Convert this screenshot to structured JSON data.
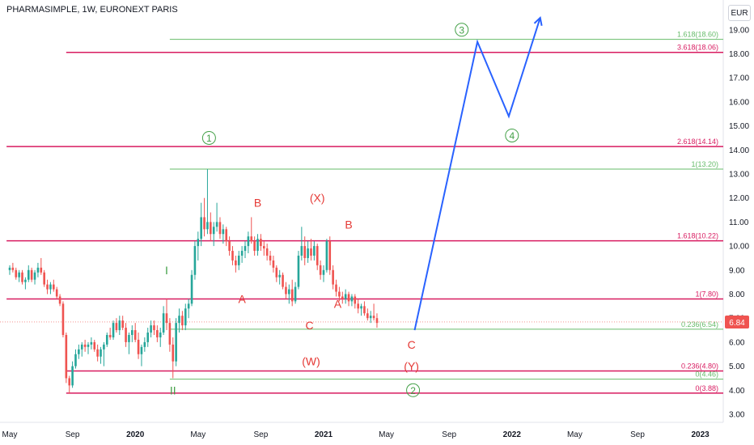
{
  "header": {
    "title": "PHARMASIMPLE, 1W, EURONEXT PARIS",
    "currency": "EUR"
  },
  "chart_data": {
    "type": "candlestick",
    "ylim": [
      2.5,
      19.7
    ],
    "y_ticks": [
      "3.00",
      "4.00",
      "5.00",
      "6.00",
      "7.00",
      "8.00",
      "9.00",
      "10.00",
      "11.00",
      "12.00",
      "13.00",
      "14.00",
      "15.00",
      "16.00",
      "17.00",
      "18.00",
      "19.00"
    ],
    "x_ticks": [
      {
        "label": "May",
        "t": 0.0
      },
      {
        "label": "Sep",
        "t": 4.0
      },
      {
        "label": "2020",
        "t": 8.0
      },
      {
        "label": "May",
        "t": 12.0
      },
      {
        "label": "Sep",
        "t": 16.0
      },
      {
        "label": "2021",
        "t": 20.0
      },
      {
        "label": "May",
        "t": 24.0
      },
      {
        "label": "Sep",
        "t": 28.0
      },
      {
        "label": "2022",
        "t": 32.0
      },
      {
        "label": "May",
        "t": 36.0
      },
      {
        "label": "Sep",
        "t": 40.0
      },
      {
        "label": "2023",
        "t": 44.0
      }
    ],
    "x_range": [
      -0.2,
      45.2
    ],
    "current_price": "6.84",
    "colors": {
      "up": "#26a69a",
      "down": "#ef5350",
      "fib_pink": "#d81b60",
      "fib_green": "#66bb6a",
      "projection": "#2962ff",
      "wave_red": "#e53935",
      "wave_green": "#43a047"
    },
    "fib_levels": [
      {
        "label": "1.618(18.60)",
        "value": 18.6,
        "color": "green",
        "from": 10.2
      },
      {
        "label": "3.618(18.06)",
        "value": 18.06,
        "color": "pink",
        "from": 3.6
      },
      {
        "label": "2.618(14.14)",
        "value": 14.14,
        "color": "pink",
        "from": -0.2
      },
      {
        "label": "1(13.20)",
        "value": 13.2,
        "color": "green",
        "from": 10.2
      },
      {
        "label": "1.618(10.22)",
        "value": 10.22,
        "color": "pink",
        "from": -0.2
      },
      {
        "label": "1(7.80)",
        "value": 7.8,
        "color": "pink",
        "from": -0.2
      },
      {
        "label": "0.236(6.54)",
        "value": 6.54,
        "color": "green",
        "from": 10.2
      },
      {
        "label": "0.236(4.80)",
        "value": 4.8,
        "color": "pink",
        "from": 3.6
      },
      {
        "label": "0(4.46)",
        "value": 4.46,
        "color": "green",
        "from": 10.2
      },
      {
        "label": "0(3.88)",
        "value": 3.88,
        "color": "pink",
        "from": 3.6
      }
    ],
    "projection_path": [
      {
        "t": 25.8,
        "v": 6.5
      },
      {
        "t": 29.8,
        "v": 18.5
      },
      {
        "t": 31.8,
        "v": 15.4
      },
      {
        "t": 33.8,
        "v": 19.5
      }
    ],
    "wave_labels": [
      {
        "text": "I",
        "t": 10.0,
        "v": 9.0,
        "color": "green",
        "circled": false
      },
      {
        "text": "II",
        "t": 10.4,
        "v": 4.0,
        "color": "green",
        "circled": false
      },
      {
        "text": "1",
        "t": 12.7,
        "v": 14.5,
        "color": "green",
        "circled": true
      },
      {
        "text": "2",
        "t": 25.7,
        "v": 4.0,
        "color": "green",
        "circled": true
      },
      {
        "text": "3",
        "t": 28.8,
        "v": 19.0,
        "color": "green",
        "circled": true
      },
      {
        "text": "4",
        "t": 32.0,
        "v": 14.6,
        "color": "green",
        "circled": true
      },
      {
        "text": "B",
        "t": 15.8,
        "v": 11.8,
        "color": "red",
        "circled": false
      },
      {
        "text": "A",
        "t": 14.8,
        "v": 7.8,
        "color": "red",
        "circled": false
      },
      {
        "text": "C",
        "t": 19.1,
        "v": 6.7,
        "color": "red",
        "circled": false
      },
      {
        "text": "(X)",
        "t": 19.6,
        "v": 12.0,
        "color": "red",
        "circled": false
      },
      {
        "text": "(W)",
        "t": 19.2,
        "v": 5.2,
        "color": "red",
        "circled": false
      },
      {
        "text": "B",
        "t": 21.6,
        "v": 10.9,
        "color": "red",
        "circled": false
      },
      {
        "text": "A",
        "t": 20.9,
        "v": 7.6,
        "color": "red",
        "circled": false
      },
      {
        "text": "C",
        "t": 25.6,
        "v": 5.9,
        "color": "red",
        "circled": false
      },
      {
        "text": "(Y)",
        "t": 25.6,
        "v": 5.0,
        "color": "red",
        "circled": false
      }
    ],
    "candles": [
      [
        0.0,
        9.0,
        9.2,
        8.8,
        9.1
      ],
      [
        0.2,
        9.1,
        9.3,
        8.9,
        9.0
      ],
      [
        0.4,
        9.0,
        9.1,
        8.6,
        8.7
      ],
      [
        0.6,
        8.7,
        9.0,
        8.5,
        8.9
      ],
      [
        0.8,
        8.9,
        9.0,
        8.4,
        8.5
      ],
      [
        1.0,
        8.5,
        8.7,
        8.2,
        8.6
      ],
      [
        1.2,
        8.6,
        9.2,
        8.5,
        9.0
      ],
      [
        1.4,
        9.0,
        9.1,
        8.5,
        8.6
      ],
      [
        1.6,
        8.6,
        9.0,
        8.4,
        8.9
      ],
      [
        1.8,
        8.9,
        9.3,
        8.7,
        9.1
      ],
      [
        2.0,
        9.1,
        9.5,
        8.8,
        8.9
      ],
      [
        2.2,
        8.9,
        9.0,
        8.3,
        8.4
      ],
      [
        2.4,
        8.4,
        8.6,
        8.0,
        8.2
      ],
      [
        2.6,
        8.2,
        8.5,
        8.0,
        8.4
      ],
      [
        2.8,
        8.4,
        8.6,
        8.1,
        8.2
      ],
      [
        3.0,
        8.2,
        8.3,
        7.8,
        7.9
      ],
      [
        3.2,
        7.9,
        8.0,
        7.5,
        7.6
      ],
      [
        3.4,
        7.6,
        7.7,
        6.2,
        6.3
      ],
      [
        3.6,
        6.3,
        6.4,
        4.3,
        4.5
      ],
      [
        3.8,
        4.5,
        4.6,
        3.85,
        4.2
      ],
      [
        4.0,
        4.2,
        5.2,
        4.1,
        5.0
      ],
      [
        4.2,
        5.0,
        5.7,
        4.9,
        5.5
      ],
      [
        4.4,
        5.5,
        5.9,
        5.3,
        5.7
      ],
      [
        4.6,
        5.7,
        6.0,
        5.4,
        5.9
      ],
      [
        4.8,
        5.9,
        6.1,
        5.6,
        5.8
      ],
      [
        5.0,
        5.8,
        6.0,
        5.5,
        5.9
      ],
      [
        5.2,
        5.9,
        6.2,
        5.7,
        6.0
      ],
      [
        5.4,
        6.0,
        6.1,
        5.6,
        5.7
      ],
      [
        5.6,
        5.7,
        5.9,
        5.2,
        5.4
      ],
      [
        5.8,
        5.4,
        5.8,
        5.1,
        5.7
      ],
      [
        6.0,
        5.7,
        6.0,
        5.0,
        5.9
      ],
      [
        6.2,
        5.9,
        6.4,
        5.8,
        6.3
      ],
      [
        6.4,
        6.3,
        6.6,
        6.1,
        6.2
      ],
      [
        6.6,
        6.2,
        6.9,
        6.1,
        6.8
      ],
      [
        6.8,
        6.8,
        7.0,
        6.4,
        6.5
      ],
      [
        7.0,
        6.5,
        7.1,
        6.3,
        6.9
      ],
      [
        7.2,
        6.9,
        7.1,
        6.5,
        6.6
      ],
      [
        7.4,
        6.6,
        6.8,
        5.8,
        6.0
      ],
      [
        7.6,
        6.0,
        6.4,
        5.5,
        6.3
      ],
      [
        7.8,
        6.3,
        6.7,
        6.0,
        6.5
      ],
      [
        8.0,
        6.5,
        6.8,
        6.0,
        6.1
      ],
      [
        8.2,
        6.1,
        6.4,
        5.3,
        5.5
      ],
      [
        8.4,
        5.5,
        5.9,
        5.0,
        5.8
      ],
      [
        8.6,
        5.8,
        6.2,
        5.6,
        6.0
      ],
      [
        8.8,
        6.0,
        6.6,
        5.8,
        6.4
      ],
      [
        9.0,
        6.4,
        6.9,
        6.2,
        6.7
      ],
      [
        9.2,
        6.7,
        6.9,
        6.3,
        6.5
      ],
      [
        9.4,
        6.5,
        6.7,
        6.0,
        6.2
      ],
      [
        9.6,
        6.2,
        6.6,
        5.8,
        6.4
      ],
      [
        9.8,
        6.4,
        7.5,
        6.3,
        7.2
      ],
      [
        10.0,
        7.2,
        7.8,
        6.5,
        6.8
      ],
      [
        10.2,
        6.8,
        7.0,
        5.6,
        5.9
      ],
      [
        10.4,
        5.9,
        6.2,
        4.5,
        5.2
      ],
      [
        10.6,
        5.2,
        7.0,
        5.0,
        6.8
      ],
      [
        10.8,
        6.8,
        7.4,
        6.4,
        7.1
      ],
      [
        11.0,
        7.1,
        7.3,
        6.5,
        6.7
      ],
      [
        11.2,
        6.7,
        7.6,
        6.5,
        7.4
      ],
      [
        11.4,
        7.4,
        7.8,
        7.0,
        7.6
      ],
      [
        11.6,
        7.6,
        9.0,
        7.5,
        8.8
      ],
      [
        11.8,
        8.8,
        10.2,
        8.6,
        10.0
      ],
      [
        12.0,
        10.0,
        10.6,
        9.4,
        10.3
      ],
      [
        12.2,
        10.3,
        11.8,
        10.0,
        11.2
      ],
      [
        12.4,
        11.2,
        12.0,
        10.4,
        10.7
      ],
      [
        12.6,
        10.7,
        13.2,
        10.5,
        11.0
      ],
      [
        12.8,
        11.0,
        11.4,
        10.2,
        10.5
      ],
      [
        13.0,
        10.5,
        11.0,
        10.0,
        10.8
      ],
      [
        13.2,
        10.8,
        11.8,
        10.6,
        11.0
      ],
      [
        13.4,
        11.0,
        11.2,
        10.3,
        10.5
      ],
      [
        13.6,
        10.5,
        10.9,
        10.1,
        10.7
      ],
      [
        13.8,
        10.7,
        10.8,
        10.0,
        10.2
      ],
      [
        14.0,
        10.2,
        10.4,
        9.6,
        9.8
      ],
      [
        14.2,
        9.8,
        10.0,
        9.2,
        9.4
      ],
      [
        14.4,
        9.4,
        9.6,
        8.9,
        9.2
      ],
      [
        14.6,
        9.2,
        9.8,
        9.0,
        9.6
      ],
      [
        14.8,
        9.6,
        10.0,
        9.3,
        9.8
      ],
      [
        15.0,
        9.8,
        10.2,
        9.5,
        10.0
      ],
      [
        15.2,
        10.0,
        10.6,
        9.7,
        10.4
      ],
      [
        15.4,
        10.4,
        11.2,
        10.1,
        10.2
      ],
      [
        15.6,
        10.2,
        10.4,
        9.6,
        9.8
      ],
      [
        15.8,
        9.8,
        10.5,
        9.6,
        10.3
      ],
      [
        16.0,
        10.3,
        10.5,
        9.8,
        10.0
      ],
      [
        16.2,
        10.0,
        10.2,
        9.6,
        9.9
      ],
      [
        16.4,
        9.9,
        10.1,
        9.4,
        9.6
      ],
      [
        16.6,
        9.6,
        9.8,
        9.2,
        9.4
      ],
      [
        16.8,
        9.4,
        9.6,
        8.9,
        9.1
      ],
      [
        17.0,
        9.1,
        9.2,
        8.5,
        8.7
      ],
      [
        17.2,
        8.7,
        9.0,
        8.4,
        8.8
      ],
      [
        17.4,
        8.8,
        8.9,
        8.2,
        8.3
      ],
      [
        17.6,
        8.3,
        8.5,
        7.8,
        8.0
      ],
      [
        17.8,
        8.0,
        8.4,
        7.6,
        8.2
      ],
      [
        18.0,
        8.2,
        8.6,
        7.5,
        7.7
      ],
      [
        18.2,
        7.7,
        8.5,
        7.6,
        8.3
      ],
      [
        18.4,
        8.3,
        9.8,
        8.2,
        9.6
      ],
      [
        18.6,
        9.6,
        10.8,
        9.4,
        10.0
      ],
      [
        18.8,
        10.0,
        10.4,
        9.2,
        9.5
      ],
      [
        19.0,
        9.5,
        10.2,
        9.3,
        9.9
      ],
      [
        19.2,
        9.9,
        10.3,
        9.4,
        9.6
      ],
      [
        19.4,
        9.6,
        10.2,
        9.4,
        10.0
      ],
      [
        19.6,
        10.0,
        10.1,
        9.0,
        9.2
      ],
      [
        19.8,
        9.2,
        9.4,
        8.6,
        8.8
      ],
      [
        20.0,
        8.8,
        9.2,
        8.5,
        9.0
      ],
      [
        20.2,
        9.0,
        10.3,
        8.9,
        10.2
      ],
      [
        20.4,
        10.2,
        10.4,
        8.8,
        9.0
      ],
      [
        20.6,
        9.0,
        9.2,
        8.2,
        8.4
      ],
      [
        20.8,
        8.4,
        8.6,
        7.9,
        8.1
      ],
      [
        21.0,
        8.1,
        8.3,
        7.7,
        7.9
      ],
      [
        21.2,
        7.9,
        8.1,
        7.6,
        7.8
      ],
      [
        21.4,
        7.8,
        8.2,
        7.6,
        8.0
      ],
      [
        21.6,
        8.0,
        8.1,
        7.5,
        7.7
      ],
      [
        21.8,
        7.7,
        8.0,
        7.5,
        7.9
      ],
      [
        22.0,
        7.9,
        8.0,
        7.4,
        7.6
      ],
      [
        22.2,
        7.6,
        7.8,
        7.2,
        7.4
      ],
      [
        22.4,
        7.4,
        7.6,
        7.1,
        7.5
      ],
      [
        22.6,
        7.5,
        7.7,
        7.1,
        7.2
      ],
      [
        22.8,
        7.2,
        7.4,
        6.9,
        7.0
      ],
      [
        23.0,
        7.0,
        7.3,
        6.8,
        7.1
      ],
      [
        23.2,
        7.1,
        7.6,
        6.9,
        7.0
      ],
      [
        23.4,
        7.0,
        7.2,
        6.6,
        6.8
      ]
    ]
  }
}
